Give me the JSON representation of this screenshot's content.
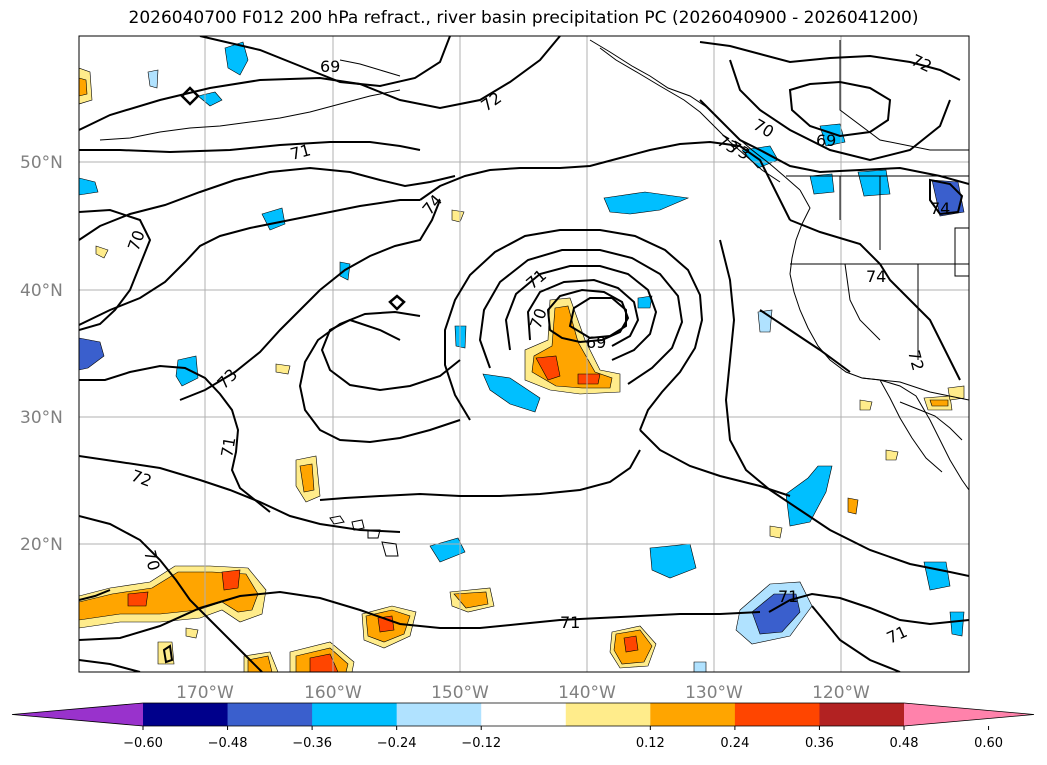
{
  "title": "2026040700 F012 200 hPa refract., river basin precipitation PC (2026040900 - 2026041200)",
  "lat_labels": [
    "50°N",
    "40°N",
    "30°N",
    "20°N"
  ],
  "lon_labels": [
    "170°W",
    "160°W",
    "150°W",
    "140°W",
    "130°W",
    "120°W"
  ],
  "contour_labels": [
    "69",
    "72",
    "71",
    "70",
    "74",
    "73",
    "71",
    "72",
    "70",
    "71",
    "70",
    "69",
    "73",
    "72",
    "69",
    "70",
    "73",
    "74",
    "74",
    "71",
    "72",
    "71",
    "71"
  ],
  "colorbar": {
    "ticks": [
      "−0.60",
      "−0.48",
      "−0.36",
      "−0.24",
      "−0.12",
      "0.12",
      "0.24",
      "0.36",
      "0.48",
      "0.60"
    ],
    "colors": [
      "#9932cc",
      "#00008b",
      "#3a5fcd",
      "#00bfff",
      "#b0e2ff",
      "#ffffff",
      "#ffec8b",
      "#ffa500",
      "#ff4500",
      "#b22222",
      "#ff82ab"
    ]
  },
  "shading_colors": {
    "light_blue": "#b0e2ff",
    "blue": "#00bfff",
    "dark_blue": "#3a5fcd",
    "light_yellow": "#ffec8b",
    "orange": "#ffa500",
    "red_orange": "#ff4500"
  }
}
